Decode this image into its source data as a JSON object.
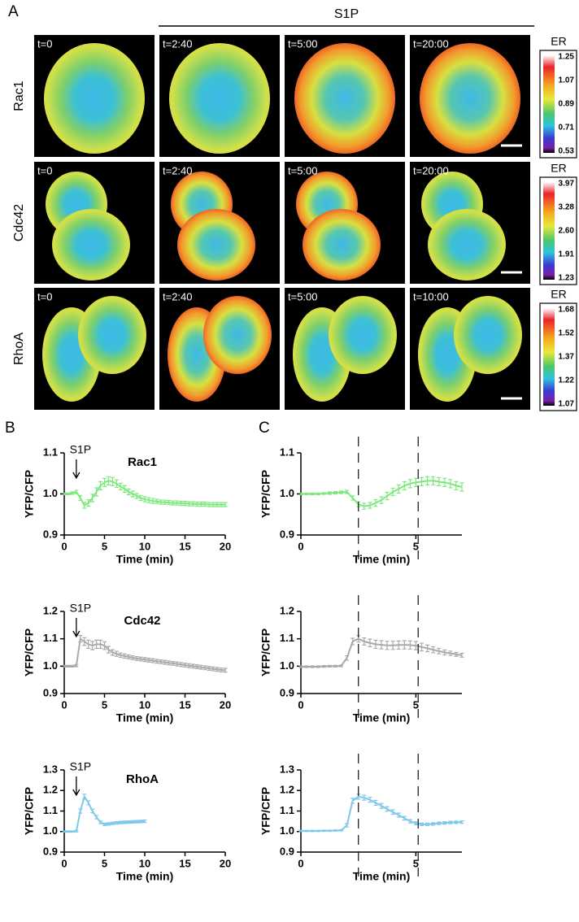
{
  "panel_a": {
    "label": "A",
    "treatment": "S1P",
    "rows": [
      {
        "name": "Rac1",
        "times": [
          "t=0",
          "t=2:40",
          "t=5:00",
          "t=20:00"
        ],
        "scale_title": "ER",
        "scale": [
          "1.25",
          "1.07",
          "0.89",
          "0.71",
          "0.53"
        ]
      },
      {
        "name": "Cdc42",
        "times": [
          "t=0",
          "t=2:40",
          "t=5:00",
          "t=20:00"
        ],
        "scale_title": "ER",
        "scale": [
          "3.97",
          "3.28",
          "2.60",
          "1.91",
          "1.23"
        ]
      },
      {
        "name": "RhoA",
        "times": [
          "t=0",
          "t=2:40",
          "t=5:00",
          "t=10:00"
        ],
        "scale_title": "ER",
        "scale": [
          "1.68",
          "1.52",
          "1.37",
          "1.22",
          "1.07"
        ]
      }
    ]
  },
  "panels": {
    "b": "B",
    "c": "C"
  },
  "chart_data": [
    {
      "type": "line",
      "title": "Rac1",
      "annotation": "S1P",
      "annotation_x": 1.5,
      "xlabel": "Time (min)",
      "ylabel": "YFP/CFP",
      "xlim": [
        0,
        20
      ],
      "xticks": [
        0,
        5,
        10,
        15,
        20
      ],
      "ylim": [
        0.9,
        1.1
      ],
      "yticks": [
        0.9,
        {
          "value": 1,
          "label": "1.0"
        },
        1.1
      ],
      "x": [
        0,
        0.5,
        1,
        1.5,
        2,
        2.5,
        3,
        3.5,
        4,
        4.5,
        5,
        5.5,
        6,
        6.5,
        7,
        7.5,
        8,
        8.5,
        9,
        9.5,
        10,
        10.5,
        11,
        11.5,
        12,
        12.5,
        13,
        13.5,
        14,
        14.5,
        15,
        15.5,
        16,
        16.5,
        17,
        17.5,
        18,
        18.5,
        19,
        19.5,
        20
      ],
      "series": [
        {
          "color": "#7ee87e",
          "values": [
            1.0,
            1.0,
            1.002,
            1.005,
            0.99,
            0.972,
            0.978,
            0.99,
            1.005,
            1.02,
            1.028,
            1.032,
            1.03,
            1.025,
            1.018,
            1.012,
            1.005,
            1.0,
            0.995,
            0.99,
            0.987,
            0.985,
            0.983,
            0.982,
            0.98,
            0.98,
            0.979,
            0.978,
            0.978,
            0.977,
            0.977,
            0.976,
            0.976,
            0.975,
            0.975,
            0.975,
            0.974,
            0.974,
            0.974,
            0.974,
            0.974
          ],
          "errors": [
            0.002,
            0.002,
            0.003,
            0.004,
            0.006,
            0.007,
            0.008,
            0.009,
            0.01,
            0.01,
            0.01,
            0.01,
            0.01,
            0.009,
            0.008,
            0.008,
            0.007,
            0.007,
            0.006,
            0.006,
            0.006,
            0.006,
            0.006,
            0.005,
            0.005,
            0.005,
            0.005,
            0.005,
            0.005,
            0.005,
            0.005,
            0.005,
            0.005,
            0.005,
            0.005,
            0.005,
            0.005,
            0.005,
            0.005,
            0.005,
            0.005
          ]
        }
      ]
    },
    {
      "type": "line",
      "title": "Cdc42",
      "annotation": "S1P",
      "annotation_x": 1.5,
      "xlabel": "Time (min)",
      "ylabel": "YFP/CFP",
      "xlim": [
        0,
        20
      ],
      "xticks": [
        0,
        5,
        10,
        15,
        20
      ],
      "ylim": [
        0.9,
        1.2
      ],
      "yticks": [
        0.9,
        {
          "value": 1,
          "label": "1.0"
        },
        1.1,
        1.2
      ],
      "x": [
        0,
        0.5,
        1,
        1.5,
        2,
        2.5,
        3,
        3.5,
        4,
        4.5,
        5,
        5.5,
        6,
        6.5,
        7,
        7.5,
        8,
        8.5,
        9,
        9.5,
        10,
        10.5,
        11,
        11.5,
        12,
        12.5,
        13,
        13.5,
        14,
        14.5,
        15,
        15.5,
        16,
        16.5,
        17,
        17.5,
        18,
        18.5,
        19,
        19.5,
        20
      ],
      "series": [
        {
          "color": "#aaaaaa",
          "values": [
            1.0,
            1.0,
            1.0,
            1.002,
            1.1,
            1.09,
            1.08,
            1.075,
            1.08,
            1.08,
            1.075,
            1.06,
            1.05,
            1.045,
            1.04,
            1.037,
            1.034,
            1.031,
            1.028,
            1.026,
            1.024,
            1.022,
            1.02,
            1.018,
            1.016,
            1.014,
            1.012,
            1.01,
            1.008,
            1.006,
            1.004,
            1.002,
            1.0,
            0.998,
            0.996,
            0.994,
            0.992,
            0.99,
            0.988,
            0.986,
            0.985
          ],
          "errors": [
            0.003,
            0.003,
            0.003,
            0.004,
            0.012,
            0.014,
            0.015,
            0.015,
            0.015,
            0.015,
            0.014,
            0.012,
            0.01,
            0.009,
            0.008,
            0.008,
            0.007,
            0.007,
            0.007,
            0.007,
            0.007,
            0.007,
            0.007,
            0.007,
            0.007,
            0.007,
            0.007,
            0.007,
            0.007,
            0.007,
            0.007,
            0.007,
            0.007,
            0.007,
            0.007,
            0.007,
            0.007,
            0.007,
            0.007,
            0.007,
            0.007
          ]
        }
      ]
    },
    {
      "type": "line",
      "title": "RhoA",
      "annotation": "S1P",
      "annotation_x": 1.5,
      "xlabel": "Time (min)",
      "ylabel": "YFP/CFP",
      "xlim": [
        0,
        20
      ],
      "xticks": [
        0,
        5,
        10,
        15,
        20
      ],
      "ylim": [
        0.9,
        1.3
      ],
      "yticks": [
        0.9,
        {
          "value": 1,
          "label": "1.0"
        },
        1.1,
        1.2,
        1.3
      ],
      "x": [
        0,
        0.5,
        1,
        1.5,
        2,
        2.5,
        3,
        3.5,
        4,
        4.5,
        5,
        5.5,
        6,
        6.5,
        7,
        7.5,
        8,
        8.5,
        9,
        9.5,
        10
      ],
      "series": [
        {
          "color": "#7ec8ea",
          "values": [
            1.0,
            1.0,
            1.0,
            1.002,
            1.1,
            1.17,
            1.14,
            1.1,
            1.07,
            1.045,
            1.035,
            1.037,
            1.04,
            1.042,
            1.044,
            1.045,
            1.046,
            1.047,
            1.048,
            1.049,
            1.05
          ],
          "errors": [
            0.003,
            0.003,
            0.003,
            0.004,
            0.01,
            0.012,
            0.01,
            0.009,
            0.008,
            0.007,
            0.006,
            0.006,
            0.006,
            0.006,
            0.006,
            0.006,
            0.006,
            0.006,
            0.006,
            0.006,
            0.006
          ]
        }
      ]
    },
    {
      "type": "line",
      "xlabel": "Time (min)",
      "ylabel": "YFP/CFP",
      "vlines": [
        2.5,
        5.1
      ],
      "xlim": [
        0,
        7
      ],
      "xticks": [
        0,
        5
      ],
      "ylim": [
        0.9,
        1.1
      ],
      "yticks": [
        0.9,
        {
          "value": 1,
          "label": "1.0"
        },
        1.1
      ],
      "x": [
        0,
        0.25,
        0.5,
        0.75,
        1,
        1.25,
        1.5,
        1.75,
        2,
        2.25,
        2.5,
        2.75,
        3,
        3.25,
        3.5,
        3.75,
        4,
        4.25,
        4.5,
        4.75,
        5,
        5.25,
        5.5,
        5.75,
        6,
        6.25,
        6.5,
        6.75,
        7
      ],
      "series": [
        {
          "color": "#7ee87e",
          "values": [
            1.0,
            1.0,
            1.0,
            1.0,
            1.001,
            1.002,
            1.003,
            1.004,
            1.005,
            0.99,
            0.975,
            0.97,
            0.972,
            0.978,
            0.985,
            0.995,
            1.005,
            1.012,
            1.02,
            1.025,
            1.028,
            1.03,
            1.032,
            1.032,
            1.03,
            1.028,
            1.025,
            1.02,
            1.017
          ],
          "errors": [
            0.002,
            0.002,
            0.002,
            0.002,
            0.002,
            0.003,
            0.003,
            0.003,
            0.004,
            0.005,
            0.006,
            0.007,
            0.007,
            0.008,
            0.008,
            0.009,
            0.009,
            0.01,
            0.01,
            0.01,
            0.01,
            0.01,
            0.01,
            0.01,
            0.01,
            0.01,
            0.01,
            0.01,
            0.01
          ]
        }
      ]
    },
    {
      "type": "line",
      "xlabel": "Time (min)",
      "ylabel": "YFP/CFP",
      "vlines": [
        2.5,
        5.1
      ],
      "xlim": [
        0,
        7
      ],
      "xticks": [
        0,
        5
      ],
      "ylim": [
        0.9,
        1.2
      ],
      "yticks": [
        0.9,
        {
          "value": 1,
          "label": "1.0"
        },
        1.1,
        1.2
      ],
      "x": [
        0,
        0.25,
        0.5,
        0.75,
        1,
        1.25,
        1.5,
        1.75,
        2,
        2.25,
        2.5,
        2.75,
        3,
        3.25,
        3.5,
        3.75,
        4,
        4.25,
        4.5,
        4.75,
        5,
        5.25,
        5.5,
        5.75,
        6,
        6.25,
        6.5,
        6.75,
        7
      ],
      "series": [
        {
          "color": "#aaaaaa",
          "values": [
            0.998,
            0.998,
            0.998,
            0.998,
            0.999,
            1.0,
            1.0,
            1.001,
            1.03,
            1.09,
            1.1,
            1.09,
            1.085,
            1.08,
            1.078,
            1.076,
            1.076,
            1.077,
            1.078,
            1.077,
            1.075,
            1.07,
            1.065,
            1.06,
            1.055,
            1.05,
            1.047,
            1.043,
            1.04
          ],
          "errors": [
            0.003,
            0.003,
            0.003,
            0.003,
            0.003,
            0.003,
            0.003,
            0.003,
            0.008,
            0.012,
            0.012,
            0.013,
            0.014,
            0.015,
            0.015,
            0.015,
            0.015,
            0.015,
            0.015,
            0.015,
            0.015,
            0.014,
            0.012,
            0.011,
            0.01,
            0.009,
            0.008,
            0.007,
            0.007
          ]
        }
      ]
    },
    {
      "type": "line",
      "xlabel": "Time (min)",
      "ylabel": "YFP/CFP",
      "vlines": [
        2.5,
        5.1
      ],
      "xlim": [
        0,
        7
      ],
      "xticks": [
        0,
        5
      ],
      "ylim": [
        0.9,
        1.3
      ],
      "yticks": [
        0.9,
        {
          "value": 1,
          "label": "1.0"
        },
        1.1,
        1.2,
        1.3
      ],
      "x": [
        0,
        0.25,
        0.5,
        0.75,
        1,
        1.25,
        1.5,
        1.75,
        2,
        2.25,
        2.5,
        2.75,
        3,
        3.25,
        3.5,
        3.75,
        4,
        4.25,
        4.5,
        4.75,
        5,
        5.25,
        5.5,
        5.75,
        6,
        6.25,
        6.5,
        6.75,
        7
      ],
      "series": [
        {
          "color": "#7ec8ea",
          "values": [
            1.003,
            1.003,
            1.003,
            1.003,
            1.004,
            1.004,
            1.005,
            1.006,
            1.03,
            1.15,
            1.17,
            1.165,
            1.155,
            1.14,
            1.125,
            1.11,
            1.095,
            1.08,
            1.065,
            1.05,
            1.04,
            1.035,
            1.035,
            1.037,
            1.04,
            1.042,
            1.044,
            1.045,
            1.046
          ],
          "errors": [
            0.003,
            0.003,
            0.003,
            0.003,
            0.003,
            0.003,
            0.003,
            0.003,
            0.008,
            0.012,
            0.012,
            0.012,
            0.012,
            0.012,
            0.012,
            0.011,
            0.011,
            0.01,
            0.009,
            0.008,
            0.007,
            0.006,
            0.006,
            0.006,
            0.006,
            0.006,
            0.006,
            0.006,
            0.006
          ]
        }
      ]
    }
  ]
}
